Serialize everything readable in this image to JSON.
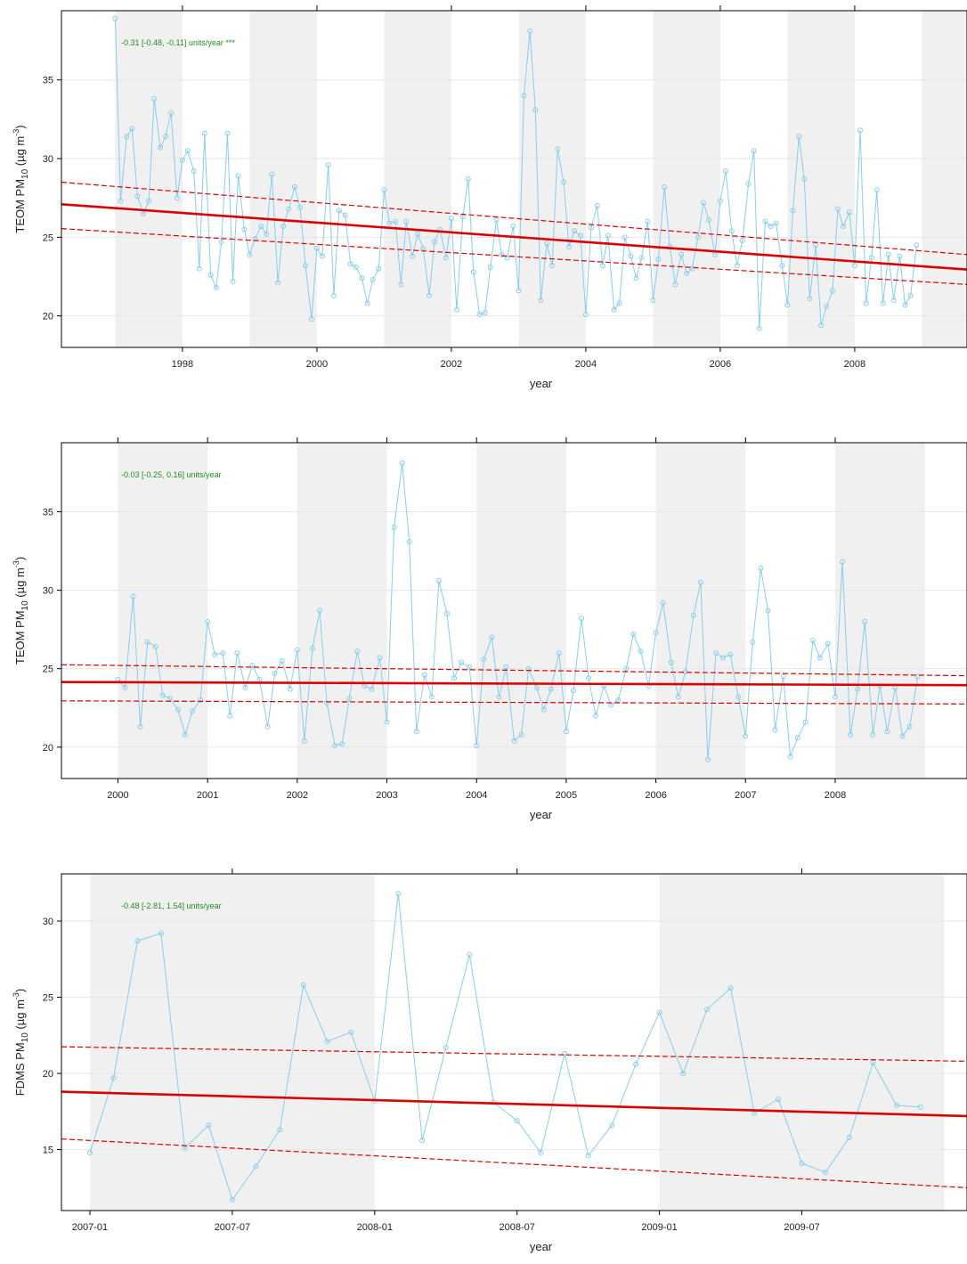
{
  "chart_data": [
    {
      "type": "line",
      "annotation": "-0.31 [-0.48, -0.11] units/year ***",
      "xlabel": "year",
      "ylabel_main": "TEOM PM",
      "ylabel_sub": "10",
      "ylabel_unit_pre": " (µg m",
      "ylabel_unit_sup": "-3",
      "ylabel_unit_post": ")",
      "xlim": [
        1996.2,
        2009.67
      ],
      "ylim": [
        18,
        39.4
      ],
      "x_ticks": [
        1998,
        2000,
        2002,
        2004,
        2006,
        2008
      ],
      "x_tick_labels": [
        "1998",
        "2000",
        "2002",
        "2004",
        "2006",
        "2008"
      ],
      "top_ticks": [
        1998,
        2000,
        2002,
        2004,
        2006,
        2008
      ],
      "y_ticks": [
        20,
        25,
        30,
        35
      ],
      "y_tick_labels": [
        "20",
        "25",
        "30",
        "35"
      ],
      "shade_bands": [
        [
          1997,
          1998
        ],
        [
          1999,
          2000
        ],
        [
          2001,
          2002
        ],
        [
          2003,
          2004
        ],
        [
          2005,
          2006
        ],
        [
          2007,
          2008
        ],
        [
          2009,
          2009.67
        ]
      ],
      "x": [
        1997.0,
        1997.08,
        1997.17,
        1997.25,
        1997.33,
        1997.42,
        1997.5,
        1997.58,
        1997.67,
        1997.75,
        1997.83,
        1997.92,
        1998.0,
        1998.08,
        1998.17,
        1998.25,
        1998.33,
        1998.42,
        1998.5,
        1998.58,
        1998.67,
        1998.75,
        1998.83,
        1998.92,
        1999.0,
        1999.08,
        1999.17,
        1999.25,
        1999.33,
        1999.42,
        1999.5,
        1999.58,
        1999.67,
        1999.75,
        1999.83,
        1999.92,
        2000.0,
        2000.08,
        2000.17,
        2000.25,
        2000.33,
        2000.42,
        2000.5,
        2000.58,
        2000.67,
        2000.75,
        2000.83,
        2000.92,
        2001.0,
        2001.08,
        2001.17,
        2001.25,
        2001.33,
        2001.42,
        2001.5,
        2001.58,
        2001.67,
        2001.75,
        2001.83,
        2001.92,
        2002.0,
        2002.08,
        2002.17,
        2002.25,
        2002.33,
        2002.42,
        2002.5,
        2002.58,
        2002.67,
        2002.75,
        2002.83,
        2002.92,
        2003.0,
        2003.08,
        2003.17,
        2003.25,
        2003.33,
        2003.42,
        2003.5,
        2003.58,
        2003.67,
        2003.75,
        2003.83,
        2003.92,
        2004.0,
        2004.08,
        2004.17,
        2004.25,
        2004.33,
        2004.42,
        2004.5,
        2004.58,
        2004.67,
        2004.75,
        2004.83,
        2004.92,
        2005.0,
        2005.08,
        2005.17,
        2005.25,
        2005.33,
        2005.42,
        2005.5,
        2005.58,
        2005.67,
        2005.75,
        2005.83,
        2005.92,
        2006.0,
        2006.08,
        2006.17,
        2006.25,
        2006.33,
        2006.42,
        2006.5,
        2006.58,
        2006.67,
        2006.75,
        2006.83,
        2006.92,
        2007.0,
        2007.08,
        2007.17,
        2007.25,
        2007.33,
        2007.42,
        2007.5,
        2007.58,
        2007.67,
        2007.75,
        2007.83,
        2007.92,
        2008.0,
        2008.08,
        2008.17,
        2008.25,
        2008.33,
        2008.42,
        2008.5,
        2008.58,
        2008.67,
        2008.75,
        2008.83,
        2008.92
      ],
      "series": [
        {
          "values": [
            38.9,
            27.3,
            31.4,
            31.9,
            27.6,
            26.5,
            27.3,
            33.8,
            30.7,
            31.4,
            32.9,
            27.5,
            29.9,
            30.5,
            29.2,
            23.0,
            31.6,
            22.6,
            21.8,
            24.7,
            31.6,
            22.2,
            28.9,
            25.5,
            23.9,
            24.9,
            25.7,
            25.2,
            29.0,
            22.1,
            25.7,
            26.8,
            28.2,
            26.9,
            23.2,
            19.8,
            24.3,
            23.8,
            29.6,
            21.3,
            26.7,
            26.4,
            23.3,
            23.1,
            22.4,
            20.8,
            22.3,
            23.0,
            28.0,
            25.9,
            26.0,
            22.0,
            26.0,
            23.8,
            25.2,
            24.3,
            21.3,
            24.7,
            25.5,
            23.7,
            26.2,
            20.4,
            26.3,
            28.7,
            22.8,
            20.1,
            20.2,
            23.1,
            26.1,
            23.9,
            23.7,
            25.7,
            21.6,
            34.0,
            38.1,
            33.1,
            21.0,
            24.6,
            23.2,
            30.6,
            28.5,
            24.4,
            25.4,
            25.1,
            20.1,
            25.6,
            27.0,
            23.2,
            25.1,
            20.4,
            20.8,
            25.0,
            23.8,
            22.4,
            23.7,
            26.0,
            21.0,
            23.6,
            28.2,
            24.4,
            22.0,
            23.9,
            22.7,
            23.0,
            25.0,
            27.2,
            26.1,
            23.9,
            27.3,
            29.2,
            25.4,
            23.2,
            24.8,
            28.4,
            30.5,
            19.2,
            26.0,
            25.7,
            25.9,
            23.2,
            20.7,
            26.7,
            31.4,
            28.7,
            21.1,
            24.5,
            19.4,
            20.6,
            21.6,
            26.8,
            25.7,
            26.6,
            23.2,
            31.8,
            20.8,
            23.7,
            28.0,
            20.8,
            23.9,
            21.0,
            23.8,
            20.7,
            21.3,
            24.5
          ]
        }
      ],
      "trend": {
        "x": [
          1996.2,
          2009.67
        ],
        "fit": [
          27.1,
          22.95
        ],
        "lower": [
          25.55,
          22.0
        ],
        "upper": [
          28.5,
          23.9
        ]
      }
    },
    {
      "type": "line",
      "annotation": "-0.03 [-0.25, 0.16] units/year",
      "xlabel": "year",
      "ylabel_main": "TEOM PM",
      "ylabel_sub": "10",
      "ylabel_unit_pre": " (µg m",
      "ylabel_unit_sup": "-3",
      "ylabel_unit_post": ")",
      "xlim": [
        1999.37,
        2009.47
      ],
      "ylim": [
        18,
        39.4
      ],
      "x_ticks": [
        2000,
        2001,
        2002,
        2003,
        2004,
        2005,
        2006,
        2007,
        2008
      ],
      "x_tick_labels": [
        "2000",
        "2001",
        "2002",
        "2003",
        "2004",
        "2005",
        "2006",
        "2007",
        "2008"
      ],
      "top_ticks": [
        2000,
        2001,
        2002,
        2003,
        2004,
        2005,
        2006,
        2007,
        2008
      ],
      "y_ticks": [
        20,
        25,
        30,
        35
      ],
      "y_tick_labels": [
        "20",
        "25",
        "30",
        "35"
      ],
      "shade_bands": [
        [
          2000,
          2001
        ],
        [
          2002,
          2003
        ],
        [
          2004,
          2005
        ],
        [
          2006,
          2007
        ],
        [
          2008,
          2009
        ]
      ],
      "x": [
        2000.0,
        2000.08,
        2000.17,
        2000.25,
        2000.33,
        2000.42,
        2000.5,
        2000.58,
        2000.67,
        2000.75,
        2000.83,
        2000.92,
        2001.0,
        2001.08,
        2001.17,
        2001.25,
        2001.33,
        2001.42,
        2001.5,
        2001.58,
        2001.67,
        2001.75,
        2001.83,
        2001.92,
        2002.0,
        2002.08,
        2002.17,
        2002.25,
        2002.33,
        2002.42,
        2002.5,
        2002.58,
        2002.67,
        2002.75,
        2002.83,
        2002.92,
        2003.0,
        2003.08,
        2003.17,
        2003.25,
        2003.33,
        2003.42,
        2003.5,
        2003.58,
        2003.67,
        2003.75,
        2003.83,
        2003.92,
        2004.0,
        2004.08,
        2004.17,
        2004.25,
        2004.33,
        2004.42,
        2004.5,
        2004.58,
        2004.67,
        2004.75,
        2004.83,
        2004.92,
        2005.0,
        2005.08,
        2005.17,
        2005.25,
        2005.33,
        2005.42,
        2005.5,
        2005.58,
        2005.67,
        2005.75,
        2005.83,
        2005.92,
        2006.0,
        2006.08,
        2006.17,
        2006.25,
        2006.33,
        2006.42,
        2006.5,
        2006.58,
        2006.67,
        2006.75,
        2006.83,
        2006.92,
        2007.0,
        2007.08,
        2007.17,
        2007.25,
        2007.33,
        2007.42,
        2007.5,
        2007.58,
        2007.67,
        2007.75,
        2007.83,
        2007.92,
        2008.0,
        2008.08,
        2008.17,
        2008.25,
        2008.33,
        2008.42,
        2008.5,
        2008.58,
        2008.67,
        2008.75,
        2008.83,
        2008.92
      ],
      "series": [
        {
          "values": [
            24.3,
            23.8,
            29.6,
            21.3,
            26.7,
            26.4,
            23.3,
            23.1,
            22.4,
            20.8,
            22.3,
            23.0,
            28.0,
            25.9,
            26.0,
            22.0,
            26.0,
            23.8,
            25.2,
            24.3,
            21.3,
            24.7,
            25.5,
            23.7,
            26.2,
            20.4,
            26.3,
            28.7,
            22.8,
            20.1,
            20.2,
            23.1,
            26.1,
            23.9,
            23.7,
            25.7,
            21.6,
            34.0,
            38.1,
            33.1,
            21.0,
            24.6,
            23.2,
            30.6,
            28.5,
            24.4,
            25.4,
            25.1,
            20.1,
            25.6,
            27.0,
            23.2,
            25.1,
            20.4,
            20.8,
            25.0,
            23.8,
            22.4,
            23.7,
            26.0,
            21.0,
            23.6,
            28.2,
            24.4,
            22.0,
            23.9,
            22.7,
            23.0,
            25.0,
            27.2,
            26.1,
            23.9,
            27.3,
            29.2,
            25.4,
            23.2,
            24.8,
            28.4,
            30.5,
            19.2,
            26.0,
            25.7,
            25.9,
            23.2,
            20.7,
            26.7,
            31.4,
            28.7,
            21.1,
            24.5,
            19.4,
            20.6,
            21.6,
            26.8,
            25.7,
            26.6,
            23.2,
            31.8,
            20.8,
            23.7,
            28.0,
            20.8,
            23.9,
            21.0,
            23.8,
            20.7,
            21.3,
            24.5
          ]
        }
      ],
      "trend": {
        "x": [
          1999.37,
          2009.47
        ],
        "fit": [
          24.15,
          23.95
        ],
        "lower": [
          22.95,
          22.75
        ],
        "upper": [
          25.25,
          24.55
        ]
      }
    },
    {
      "type": "line",
      "annotation": "-0.48 [-2.81, 1.54] units/year",
      "xlabel": "year",
      "ylabel_main": "FDMS PM",
      "ylabel_sub": "10",
      "ylabel_unit_pre": " (µg m",
      "ylabel_unit_sup": "-3",
      "ylabel_unit_post": ")",
      "xlim": [
        2006.9,
        2010.08
      ],
      "ylim": [
        11,
        33.1
      ],
      "x_ticks": [
        2007.0,
        2007.5,
        2008.0,
        2008.5,
        2009.0,
        2009.5
      ],
      "x_tick_labels": [
        "2007-01",
        "2007-07",
        "2008-01",
        "2008-07",
        "2009-01",
        "2009-07"
      ],
      "top_ticks": [
        2007.5,
        2008.5,
        2009.5
      ],
      "y_ticks": [
        15,
        20,
        25,
        30
      ],
      "y_tick_labels": [
        "15",
        "20",
        "25",
        "30"
      ],
      "shade_bands": [
        [
          2007.0,
          2008.0
        ],
        [
          2009.0,
          2010.0
        ]
      ],
      "x": [
        2007.0,
        2007.083,
        2007.167,
        2007.25,
        2007.333,
        2007.417,
        2007.5,
        2007.583,
        2007.667,
        2007.75,
        2007.833,
        2007.917,
        2008.0,
        2008.083,
        2008.167,
        2008.25,
        2008.333,
        2008.417,
        2008.5,
        2008.583,
        2008.667,
        2008.75,
        2008.833,
        2008.917,
        2009.0,
        2009.083,
        2009.167,
        2009.25,
        2009.333,
        2009.417,
        2009.5,
        2009.583,
        2009.667,
        2009.75,
        2009.833,
        2009.917
      ],
      "series": [
        {
          "values": [
            14.8,
            19.7,
            28.7,
            29.2,
            15.1,
            16.6,
            11.7,
            13.9,
            16.3,
            25.8,
            22.1,
            22.7,
            18.2,
            31.8,
            15.6,
            21.7,
            27.8,
            18.1,
            16.9,
            14.8,
            21.3,
            14.6,
            16.6,
            20.6,
            24.0,
            20.0,
            24.2,
            25.6,
            17.4,
            18.3,
            14.1,
            13.5,
            15.8,
            20.7,
            17.9,
            17.8
          ]
        }
      ],
      "trend": {
        "x": [
          2006.9,
          2010.08
        ],
        "fit": [
          18.8,
          17.2
        ],
        "lower": [
          15.7,
          12.5
        ],
        "upper": [
          21.75,
          20.8
        ]
      }
    }
  ],
  "colors": {
    "series_line": "#87ceeb",
    "trend_line": "#dd0000",
    "annotation_text": "#228b22",
    "shade": "#f0f0f0",
    "axis": "#000000"
  }
}
